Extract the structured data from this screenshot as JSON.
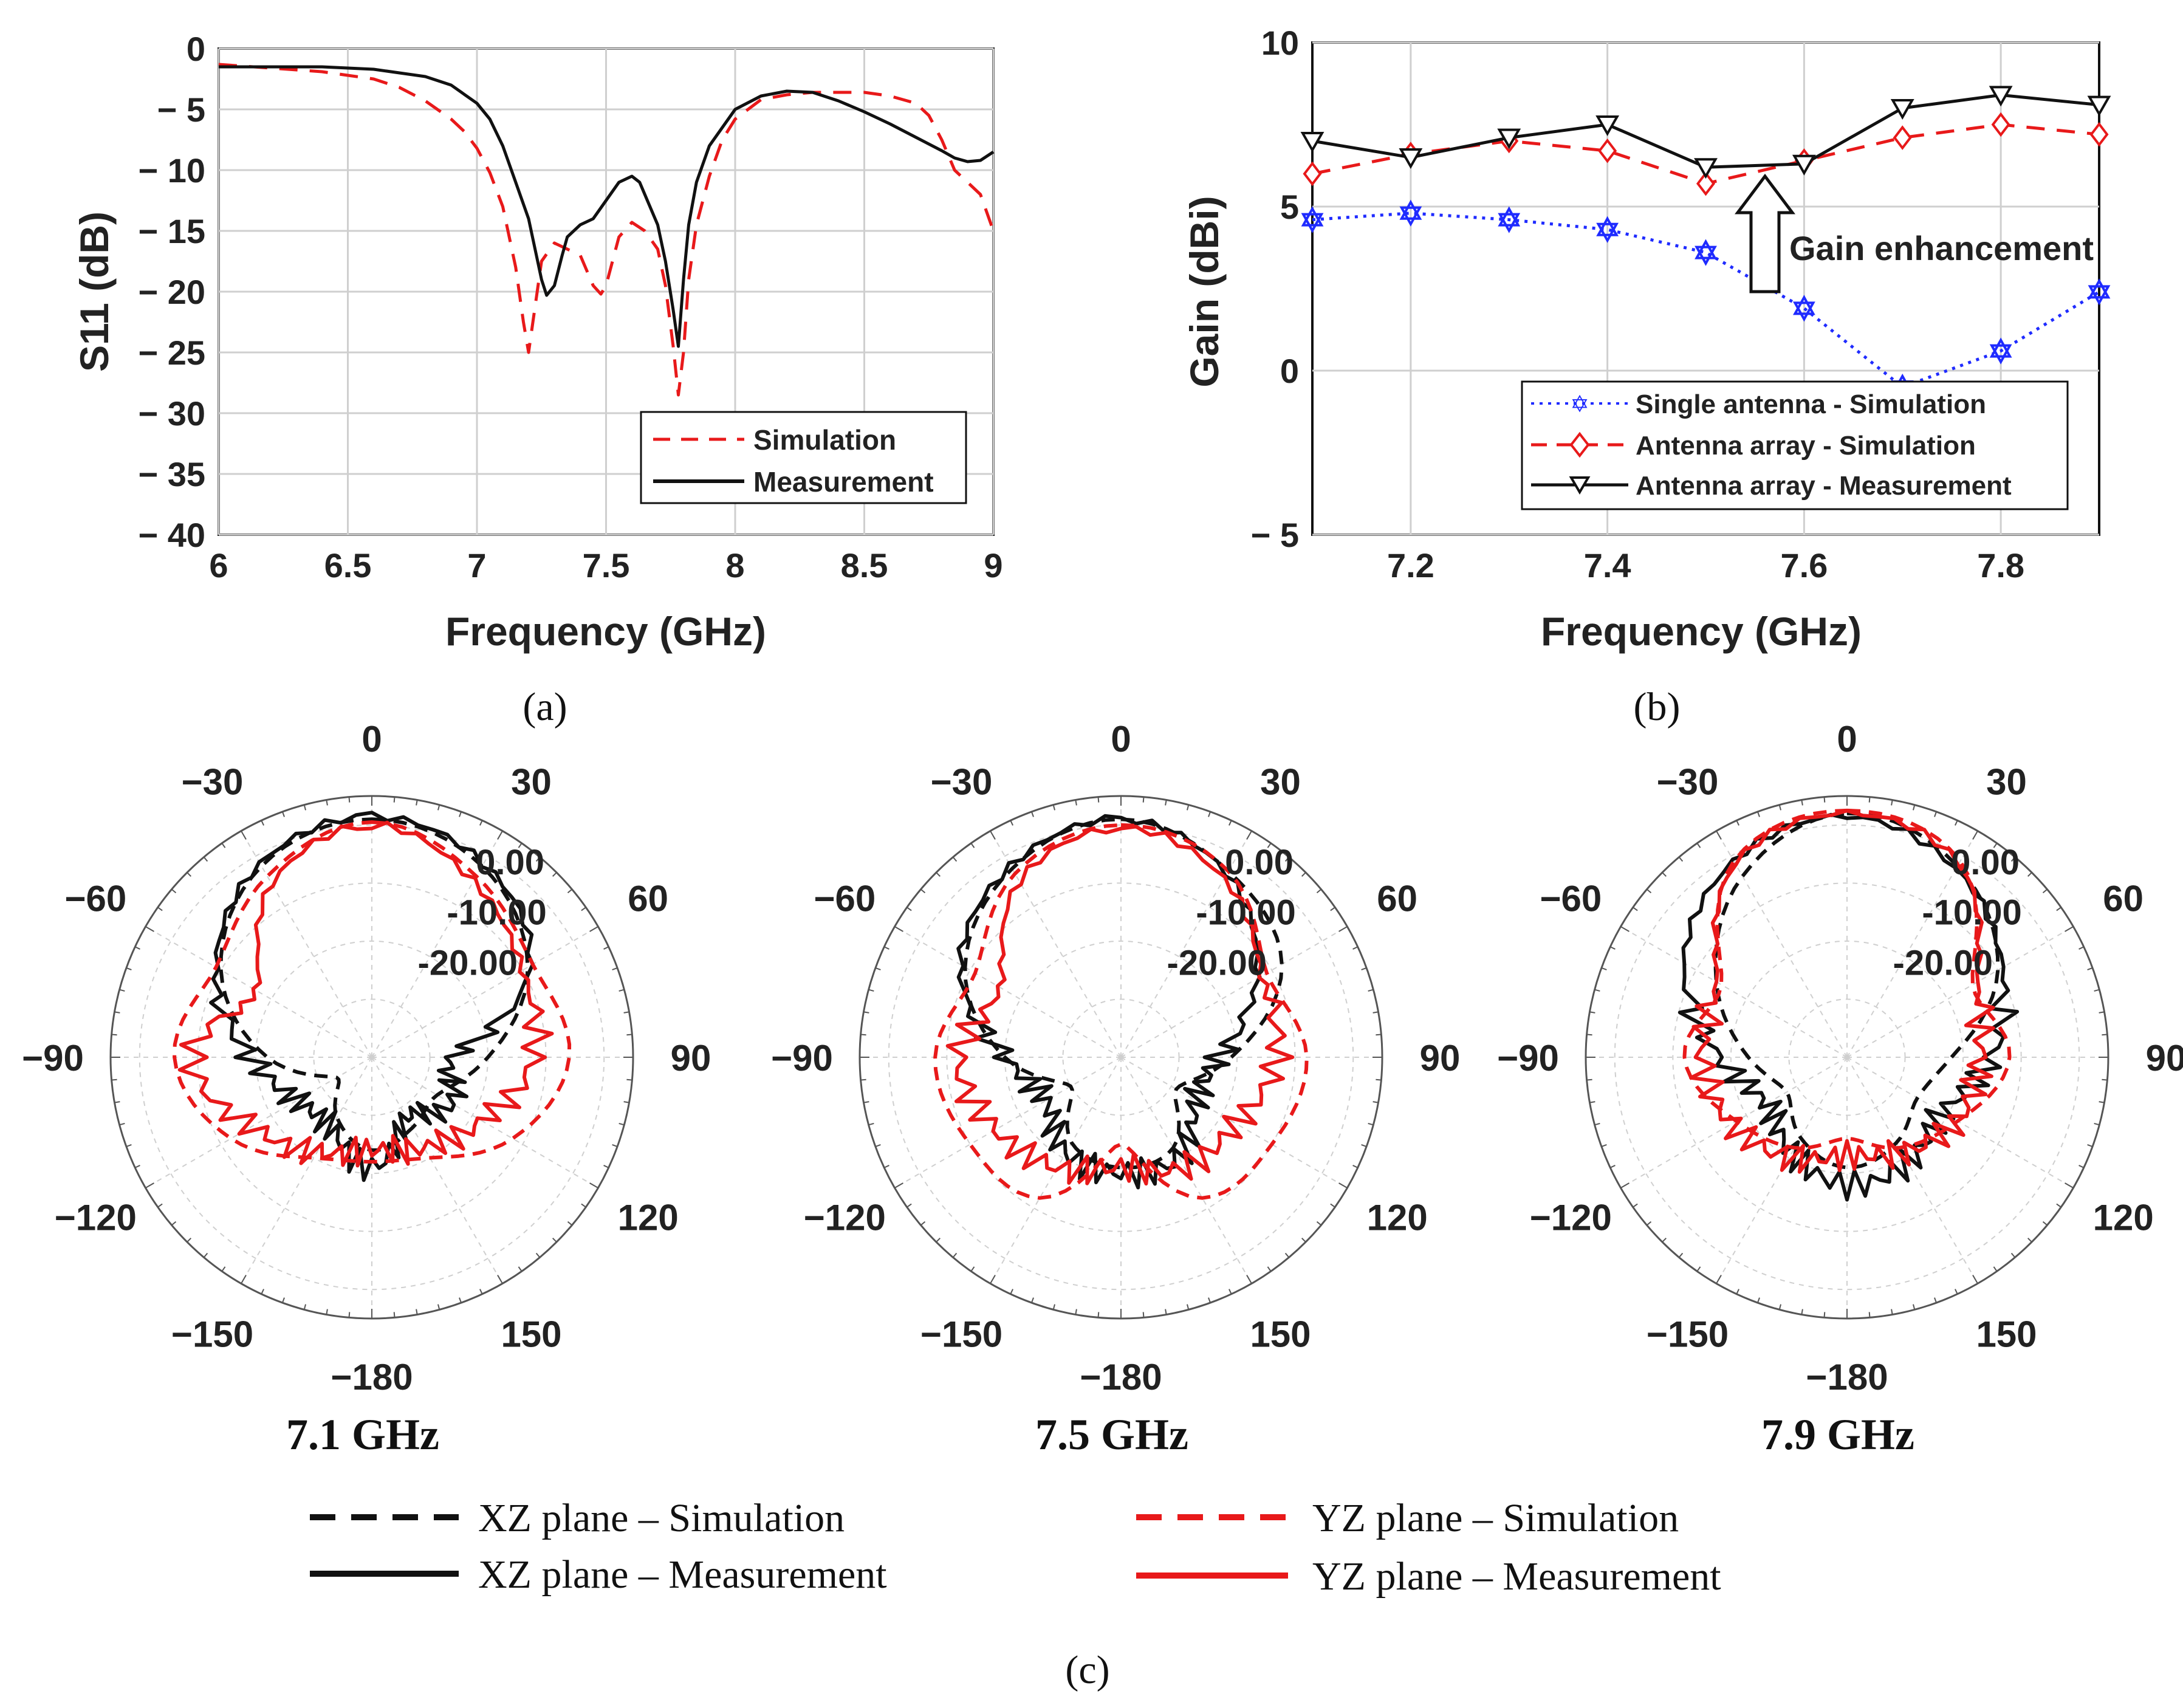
{
  "chart_data": [
    {
      "id": "a",
      "type": "line",
      "caption": "(a)",
      "xlabel": "Frequency (GHz)",
      "ylabel": "S11 (dB)",
      "xlim": [
        6,
        9
      ],
      "ylim": [
        -40,
        0
      ],
      "xticks": [
        "6",
        "6.5",
        "7",
        "7.5",
        "8",
        "8.5",
        "9"
      ],
      "yticks": [
        "0",
        "− 5",
        "− 10",
        "− 15",
        "− 20",
        "− 25",
        "− 30",
        "− 35",
        "− 40"
      ],
      "grid": true,
      "legend_position": "bottom-right",
      "series": [
        {
          "name": "Simulation",
          "color": "#e8191a",
          "dash": "dashed",
          "x": [
            6.0,
            6.2,
            6.4,
            6.6,
            6.7,
            6.8,
            6.9,
            6.95,
            7.0,
            7.05,
            7.1,
            7.15,
            7.18,
            7.2,
            7.22,
            7.25,
            7.3,
            7.35,
            7.4,
            7.45,
            7.48,
            7.5,
            7.55,
            7.6,
            7.65,
            7.7,
            7.73,
            7.76,
            7.78,
            7.8,
            7.82,
            7.85,
            7.9,
            7.95,
            8.0,
            8.1,
            8.2,
            8.3,
            8.5,
            8.6,
            8.7,
            8.75,
            8.8,
            8.85,
            8.9,
            8.95,
            9.0
          ],
          "y": [
            -1.3,
            -1.6,
            -1.9,
            -2.5,
            -3.2,
            -4.3,
            -5.8,
            -6.8,
            -8.2,
            -10.2,
            -13.0,
            -18.0,
            -22.5,
            -25.0,
            -22.0,
            -17.5,
            -16.0,
            -16.5,
            -17.0,
            -19.5,
            -20.2,
            -19.5,
            -15.5,
            -14.3,
            -15.0,
            -16.5,
            -19.5,
            -24.5,
            -28.5,
            -25.0,
            -19.0,
            -14.5,
            -10.5,
            -7.5,
            -5.8,
            -4.2,
            -3.8,
            -3.6,
            -3.6,
            -3.9,
            -4.5,
            -5.5,
            -7.5,
            -10.0,
            -11.0,
            -12.0,
            -15.0
          ]
        },
        {
          "name": "Measurement",
          "color": "#111111",
          "dash": "solid",
          "x": [
            6.0,
            6.2,
            6.4,
            6.6,
            6.8,
            6.9,
            7.0,
            7.05,
            7.1,
            7.15,
            7.2,
            7.23,
            7.25,
            7.27,
            7.3,
            7.33,
            7.35,
            7.4,
            7.45,
            7.5,
            7.55,
            7.6,
            7.63,
            7.66,
            7.7,
            7.73,
            7.76,
            7.78,
            7.8,
            7.82,
            7.85,
            7.9,
            8.0,
            8.1,
            8.2,
            8.3,
            8.4,
            8.5,
            8.6,
            8.7,
            8.8,
            8.85,
            8.9,
            8.95,
            9.0
          ],
          "y": [
            -1.5,
            -1.5,
            -1.5,
            -1.7,
            -2.3,
            -3.0,
            -4.5,
            -5.8,
            -8.0,
            -11.0,
            -14.0,
            -17.0,
            -19.0,
            -20.3,
            -19.5,
            -17.0,
            -15.5,
            -14.5,
            -14.0,
            -12.5,
            -11.0,
            -10.5,
            -11.0,
            -12.5,
            -14.5,
            -17.5,
            -21.5,
            -24.5,
            -19.0,
            -14.5,
            -11.0,
            -8.0,
            -5.0,
            -3.9,
            -3.5,
            -3.6,
            -4.3,
            -5.2,
            -6.2,
            -7.3,
            -8.4,
            -9.0,
            -9.3,
            -9.2,
            -8.5
          ]
        }
      ]
    },
    {
      "id": "b",
      "type": "line",
      "caption": "(b)",
      "xlabel": "Frequency (GHz)",
      "ylabel": "Gain (dBi)",
      "xlim": [
        7.1,
        7.9
      ],
      "ylim": [
        -5,
        10
      ],
      "xticks": [
        "7.2",
        "7.4",
        "7.6",
        "7.8"
      ],
      "yticks": [
        "− 5",
        "0",
        "5",
        "10"
      ],
      "grid": true,
      "legend_position": "bottom-right",
      "annotation": "Gain enhancement",
      "series": [
        {
          "name": "Single antenna - Simulation",
          "color": "#1f2bff",
          "dash": "dotted",
          "marker": "hexagram",
          "x": [
            7.1,
            7.2,
            7.3,
            7.4,
            7.5,
            7.6,
            7.7,
            7.8,
            7.9
          ],
          "y": [
            4.6,
            4.8,
            4.6,
            4.3,
            3.6,
            1.9,
            -0.5,
            0.6,
            2.4
          ]
        },
        {
          "name": "Antenna array - Simulation",
          "color": "#e8191a",
          "dash": "dashed",
          "marker": "diamond",
          "x": [
            7.1,
            7.2,
            7.3,
            7.4,
            7.5,
            7.6,
            7.7,
            7.8,
            7.9
          ],
          "y": [
            6.0,
            6.6,
            7.0,
            6.7,
            5.7,
            6.4,
            7.1,
            7.5,
            7.2
          ]
        },
        {
          "name": "Antenna array - Measurement",
          "color": "#111111",
          "dash": "solid",
          "marker": "triangle-down",
          "x": [
            7.1,
            7.2,
            7.3,
            7.4,
            7.5,
            7.6,
            7.7,
            7.8,
            7.9
          ],
          "y": [
            7.0,
            6.5,
            7.1,
            7.5,
            6.2,
            6.3,
            8.0,
            8.4,
            8.1
          ]
        }
      ]
    },
    {
      "id": "c",
      "type": "polar",
      "caption": "(c)",
      "radial_ticks": [
        "0.00",
        "-10.00",
        "-20.00"
      ],
      "radial_range_db": [
        -40,
        5
      ],
      "angle_labels": [
        "0",
        "30",
        "60",
        "90",
        "120",
        "150",
        "−180",
        "−150",
        "−120",
        "−90",
        "−60",
        "−30"
      ],
      "angle_label_deg": [
        0,
        30,
        60,
        90,
        120,
        150,
        180,
        210,
        240,
        270,
        300,
        330
      ],
      "series_styles": [
        {
          "name": "XZ plane – Simulation",
          "color": "#111111",
          "dash": "dashed"
        },
        {
          "name": "XZ plane – Measurement",
          "color": "#111111",
          "dash": "solid"
        },
        {
          "name": "YZ plane – Simulation",
          "color": "#e8191a",
          "dash": "dashed"
        },
        {
          "name": "YZ plane – Measurement",
          "color": "#e8191a",
          "dash": "solid"
        }
      ],
      "angles_deg": [
        0,
        30,
        60,
        90,
        120,
        150,
        180,
        210,
        240,
        270,
        300,
        330
      ],
      "plots": [
        {
          "title": "7.1 GHz",
          "series": [
            {
              "name": "XZ plane – Simulation",
              "gain_db": [
                1.0,
                -2.0,
                -9.0,
                -20.0,
                -27.0,
                -26.0,
                -24.0,
                -28.0,
                -33.0,
                -22.0,
                -10.0,
                -2.0
              ]
            },
            {
              "name": "XZ plane – Measurement",
              "gain_db": [
                1.5,
                -1.5,
                -8.5,
                -26.0,
                -24.0,
                -28.0,
                -21.0,
                -26.0,
                -25.0,
                -19.0,
                -9.0,
                -1.5
              ]
            },
            {
              "name": "YZ plane – Simulation",
              "gain_db": [
                0.5,
                -4.0,
                -8.0,
                -6.0,
                -12.0,
                -20.0,
                -22.0,
                -20.0,
                -12.0,
                -6.0,
                -9.0,
                -4.0
              ]
            },
            {
              "name": "YZ plane – Measurement",
              "gain_db": [
                0.0,
                -5.0,
                -10.0,
                -12.0,
                -18.0,
                -22.0,
                -24.0,
                -21.0,
                -16.0,
                -9.0,
                -17.0,
                -5.5
              ]
            }
          ]
        },
        {
          "title": "7.5 GHz",
          "series": [
            {
              "name": "XZ plane – Simulation",
              "gain_db": [
                1.0,
                -3.0,
                -8.0,
                -21.0,
                -29.0,
                -22.0,
                -21.0,
                -23.0,
                -30.0,
                -20.0,
                -9.0,
                -2.5
              ]
            },
            {
              "name": "XZ plane – Measurement",
              "gain_db": [
                1.0,
                -3.5,
                -13.0,
                -23.0,
                -25.0,
                -20.0,
                -20.0,
                -21.0,
                -25.0,
                -20.0,
                -8.0,
                -2.0
              ]
            },
            {
              "name": "YZ plane – Simulation",
              "gain_db": [
                0.0,
                -3.0,
                -11.0,
                -8.0,
                -10.0,
                -12.0,
                -25.0,
                -12.0,
                -10.0,
                -8.0,
                -11.0,
                -3.5
              ]
            },
            {
              "name": "YZ plane – Measurement",
              "gain_db": [
                -0.5,
                -4.5,
                -12.0,
                -13.0,
                -17.0,
                -18.0,
                -21.0,
                -18.0,
                -15.0,
                -12.0,
                -16.0,
                -5.0
              ]
            }
          ]
        },
        {
          "title": "7.9 GHz",
          "series": [
            {
              "name": "XZ plane – Simulation",
              "gain_db": [
                2.0,
                -2.0,
                -10.0,
                -22.0,
                -26.0,
                -23.0,
                -21.0,
                -24.0,
                -28.0,
                -23.0,
                -14.0,
                -4.0
              ]
            },
            {
              "name": "XZ plane – Measurement",
              "gain_db": [
                1.5,
                -2.5,
                -9.0,
                -15.0,
                -21.0,
                -19.0,
                -18.0,
                -21.0,
                -24.0,
                -18.0,
                -7.5,
                -1.0
              ]
            },
            {
              "name": "YZ plane – Simulation",
              "gain_db": [
                2.5,
                -1.0,
                -15.0,
                -12.0,
                -18.0,
                -22.0,
                -26.0,
                -22.0,
                -18.0,
                -12.0,
                -15.0,
                -1.0
              ]
            },
            {
              "name": "YZ plane – Measurement",
              "gain_db": [
                2.0,
                -1.5,
                -14.0,
                -17.0,
                -18.0,
                -21.0,
                -23.0,
                -20.0,
                -17.0,
                -15.0,
                -14.0,
                -1.5
              ]
            }
          ]
        }
      ]
    }
  ]
}
